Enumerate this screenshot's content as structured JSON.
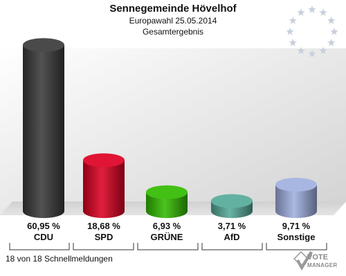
{
  "header": {
    "title": "Sennegemeinde Hövelhof",
    "subtitle": "Europawahl 25.05.2014",
    "subtitle2": "Gesamtergebnis"
  },
  "footer": {
    "note": "18 von 18 Schnellmeldungen",
    "logo_line1": "VOTE",
    "logo_line2": "MANAGER"
  },
  "colors": {
    "CDU": "#3a3a3a",
    "SPD": "#dd0022",
    "GRÜNE": "#33bb00",
    "AfD": "#55aa99",
    "Sonstige": "#a0b0e0",
    "stars": "#c8d0dc"
  },
  "chart_data": {
    "type": "bar",
    "title": "Sennegemeinde Hövelhof",
    "subtitle": "Europawahl 25.05.2014 Gesamtergebnis",
    "categories": [
      "CDU",
      "SPD",
      "GRÜNE",
      "AfD",
      "Sonstige"
    ],
    "values": [
      60.95,
      18.68,
      6.93,
      3.71,
      9.71
    ],
    "value_labels": [
      "60,95 %",
      "18,68 %",
      "6,93 %",
      "3,71 %",
      "9,71 %"
    ],
    "unit": "%",
    "ylim": [
      0,
      65
    ],
    "grid": false,
    "legend": "none"
  }
}
